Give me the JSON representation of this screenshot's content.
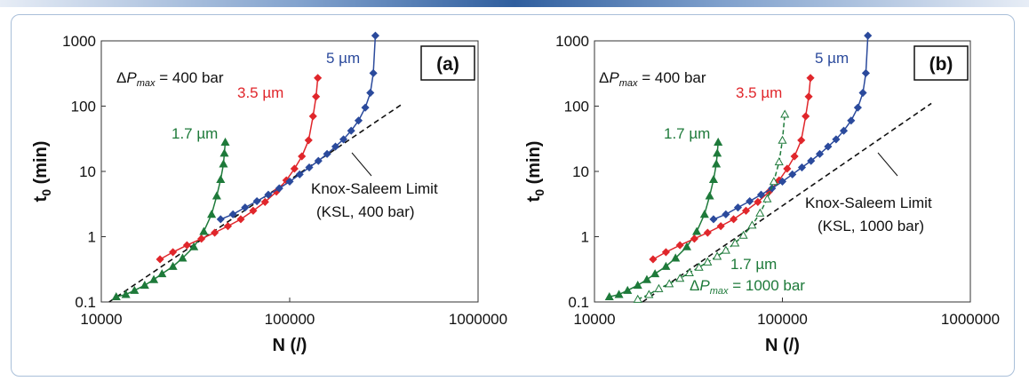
{
  "colors": {
    "c1_7": "#1e7a3a",
    "c3_5": "#e0262b",
    "c5": "#2b4a9c",
    "limit": "#111111"
  },
  "chart_data": [
    {
      "type": "line",
      "panel_label": "(a)",
      "xlabel": "N (/)",
      "ylabel": "t0 (min)",
      "xscale": "log",
      "yscale": "log",
      "xlim": [
        10000,
        1000000
      ],
      "ylim": [
        0.1,
        1000
      ],
      "x_ticks": [
        "10000",
        "100000",
        "1000000"
      ],
      "y_ticks": [
        "0.1",
        "1",
        "10",
        "100",
        "1000"
      ],
      "pressure_label": "ΔPmax = 400 bar",
      "limit_label_1": "Knox-Saleem Limit",
      "limit_label_2": "(KSL, 400 bar)",
      "limit_line": {
        "x": [
          11000,
          400000
        ],
        "y": [
          0.1,
          110
        ]
      },
      "series": [
        {
          "name": "1.7 µm",
          "color_key": "c1_7",
          "marker": "triangle",
          "filled": true,
          "dashed": false,
          "x": [
            12000,
            13500,
            15000,
            17000,
            19000,
            21000,
            24000,
            27000,
            31000,
            35000,
            38500,
            41000,
            43000,
            44500,
            45000,
            45500
          ],
          "y": [
            0.12,
            0.13,
            0.15,
            0.18,
            0.22,
            0.27,
            0.35,
            0.47,
            0.7,
            1.2,
            2.2,
            4.2,
            7.5,
            13,
            19,
            28
          ]
        },
        {
          "name": "3.5 µm",
          "color_key": "c3_5",
          "marker": "diamond",
          "filled": true,
          "dashed": false,
          "x": [
            20500,
            24000,
            28500,
            34000,
            40000,
            47000,
            55000,
            64000,
            74000,
            85000,
            96000,
            106000,
            116000,
            126000,
            133000,
            138000,
            141000
          ],
          "y": [
            0.45,
            0.58,
            0.74,
            0.93,
            1.15,
            1.45,
            1.85,
            2.5,
            3.4,
            4.9,
            7.3,
            11,
            17,
            30,
            70,
            140,
            270
          ]
        },
        {
          "name": "5 µm",
          "color_key": "c5",
          "marker": "diamond",
          "filled": true,
          "dashed": false,
          "x": [
            43000,
            50000,
            58000,
            67000,
            77000,
            88000,
            100000,
            113000,
            127000,
            142000,
            158000,
            175000,
            193000,
            212000,
            232000,
            252000,
            268000,
            278000,
            285000
          ],
          "y": [
            1.85,
            2.2,
            2.8,
            3.5,
            4.4,
            5.5,
            7,
            9,
            11.5,
            14.5,
            18.5,
            24,
            31,
            42,
            60,
            95,
            160,
            320,
            1200
          ]
        }
      ],
      "series_labels": [
        "1.7 µm",
        "3.5 µm",
        "5 µm"
      ]
    },
    {
      "type": "line",
      "panel_label": "(b)",
      "xlabel": "N (/)",
      "ylabel": "t0 (min)",
      "xscale": "log",
      "yscale": "log",
      "xlim": [
        10000,
        1000000
      ],
      "ylim": [
        0.1,
        1000
      ],
      "x_ticks": [
        "10000",
        "100000",
        "1000000"
      ],
      "y_ticks": [
        "0.1",
        "1",
        "10",
        "100",
        "1000"
      ],
      "pressure_label": "ΔPmax = 400 bar",
      "limit_label_1": "Knox-Saleem Limit",
      "limit_label_2": "(KSL, 1000 bar)",
      "limit_line": {
        "x": [
          18000,
          620000
        ],
        "y": [
          0.1,
          110
        ]
      },
      "series": [
        {
          "name": "1.7 µm",
          "color_key": "c1_7",
          "marker": "triangle",
          "filled": true,
          "dashed": false,
          "x": [
            12000,
            13500,
            15000,
            17000,
            19000,
            21000,
            24000,
            27000,
            31000,
            35000,
            38500,
            41000,
            43000,
            44500,
            45000,
            45500
          ],
          "y": [
            0.12,
            0.13,
            0.15,
            0.18,
            0.22,
            0.27,
            0.35,
            0.47,
            0.7,
            1.2,
            2.2,
            4.2,
            7.5,
            13,
            19,
            28
          ]
        },
        {
          "name": "3.5 µm",
          "color_key": "c3_5",
          "marker": "diamond",
          "filled": true,
          "dashed": false,
          "x": [
            20500,
            24000,
            28500,
            34000,
            40000,
            47000,
            55000,
            64000,
            74000,
            85000,
            96000,
            106000,
            116000,
            126000,
            133000,
            138000,
            141000
          ],
          "y": [
            0.45,
            0.58,
            0.74,
            0.93,
            1.15,
            1.45,
            1.85,
            2.5,
            3.4,
            4.9,
            7.3,
            11,
            17,
            30,
            70,
            140,
            270
          ]
        },
        {
          "name": "5 µm",
          "color_key": "c5",
          "marker": "diamond",
          "filled": true,
          "dashed": false,
          "x": [
            43000,
            50000,
            58000,
            67000,
            77000,
            88000,
            100000,
            113000,
            127000,
            142000,
            158000,
            175000,
            193000,
            212000,
            232000,
            252000,
            268000,
            278000,
            285000
          ],
          "y": [
            1.85,
            2.2,
            2.8,
            3.5,
            4.4,
            5.5,
            7,
            9,
            11.5,
            14.5,
            18.5,
            24,
            31,
            42,
            60,
            95,
            160,
            320,
            1200
          ]
        },
        {
          "name": "1.7 µm, ΔPmax = 1000 bar",
          "color_key": "c1_7",
          "marker": "triangle",
          "filled": false,
          "dashed": true,
          "x": [
            17000,
            19500,
            22000,
            25000,
            28500,
            32000,
            36000,
            40000,
            45000,
            50000,
            56000,
            62000,
            69000,
            76000,
            83000,
            90000,
            96000,
            100000,
            103000
          ],
          "y": [
            0.11,
            0.13,
            0.16,
            0.19,
            0.23,
            0.28,
            0.34,
            0.41,
            0.5,
            0.62,
            0.8,
            1.05,
            1.5,
            2.3,
            3.8,
            7,
            14,
            30,
            75
          ]
        }
      ],
      "series_labels": [
        "1.7 µm",
        "3.5 µm",
        "5 µm"
      ],
      "extra_label_1": "1.7 µm",
      "extra_label_2": "ΔPmax = 1000 bar"
    }
  ]
}
